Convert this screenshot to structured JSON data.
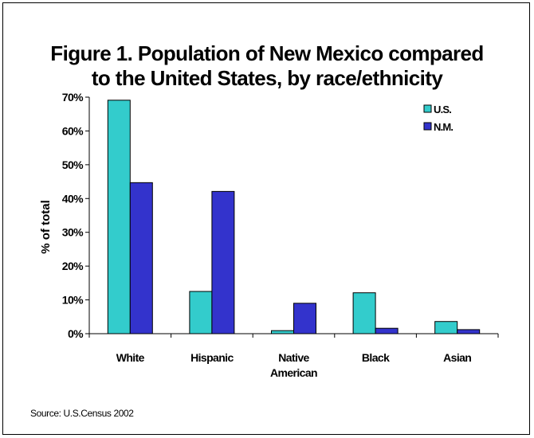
{
  "chart_data": {
    "type": "bar",
    "title_lines": [
      "Figure 1. Population of New Mexico compared",
      "to the United States, by race/ethnicity"
    ],
    "xlabel": "",
    "ylabel": "% of total",
    "ylim": [
      0,
      70
    ],
    "yticks": [
      "0%",
      "10%",
      "20%",
      "30%",
      "40%",
      "50%",
      "60%",
      "70%"
    ],
    "categories": [
      [
        "White"
      ],
      [
        "Hispanic"
      ],
      [
        "Native",
        "American"
      ],
      [
        "Black"
      ],
      [
        "Asian"
      ]
    ],
    "series": [
      {
        "name": "U.S.",
        "color": "#33cccc",
        "values": [
          69.1,
          12.5,
          0.9,
          12.1,
          3.6
        ]
      },
      {
        "name": "N.M.",
        "color": "#3333cc",
        "values": [
          44.7,
          42.1,
          9.0,
          1.6,
          1.2
        ]
      }
    ],
    "legend_position": "top-right",
    "grid": false
  },
  "source": "Source: U.S.Census 2002"
}
